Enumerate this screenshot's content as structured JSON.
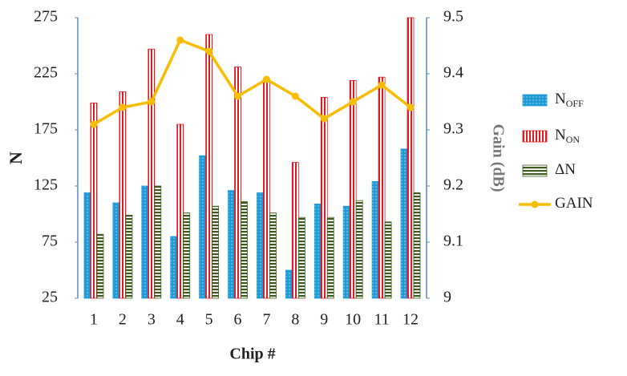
{
  "chart_data": {
    "type": "bar-line",
    "x_label": "Chip #",
    "y_label": "N",
    "y2_label": "Gain (dB)",
    "categories": [
      "1",
      "2",
      "3",
      "4",
      "5",
      "6",
      "7",
      "8",
      "9",
      "10",
      "11",
      "12"
    ],
    "ylim": [
      25,
      275
    ],
    "yticks": [
      25,
      75,
      125,
      175,
      225,
      275
    ],
    "y2lim": [
      9,
      9.5
    ],
    "y2ticks": [
      9,
      9.1,
      9.2,
      9.3,
      9.4,
      9.5
    ],
    "series": [
      {
        "name": "N",
        "name_sub": "OFF",
        "type": "bar",
        "color": "#1e9ad6",
        "values": [
          119,
          110,
          125,
          80,
          152,
          121,
          119,
          50,
          109,
          107,
          129,
          158
        ]
      },
      {
        "name": "N",
        "name_sub": "ON",
        "type": "bar",
        "color": "#e3191f",
        "values": [
          199,
          209,
          247,
          180,
          260,
          231,
          220,
          146,
          204,
          219,
          222,
          275
        ]
      },
      {
        "name": "ΔN",
        "type": "bar",
        "color": "#3e5a1e",
        "values": [
          82,
          99,
          125,
          101,
          107,
          111,
          101,
          97,
          97,
          112,
          93,
          119
        ]
      },
      {
        "name": "GAIN",
        "type": "line",
        "axis": "y2",
        "color": "#f7bd00",
        "values": [
          9.31,
          9.34,
          9.35,
          9.46,
          9.44,
          9.36,
          9.39,
          9.36,
          9.32,
          9.35,
          9.38,
          9.34
        ]
      }
    ]
  }
}
